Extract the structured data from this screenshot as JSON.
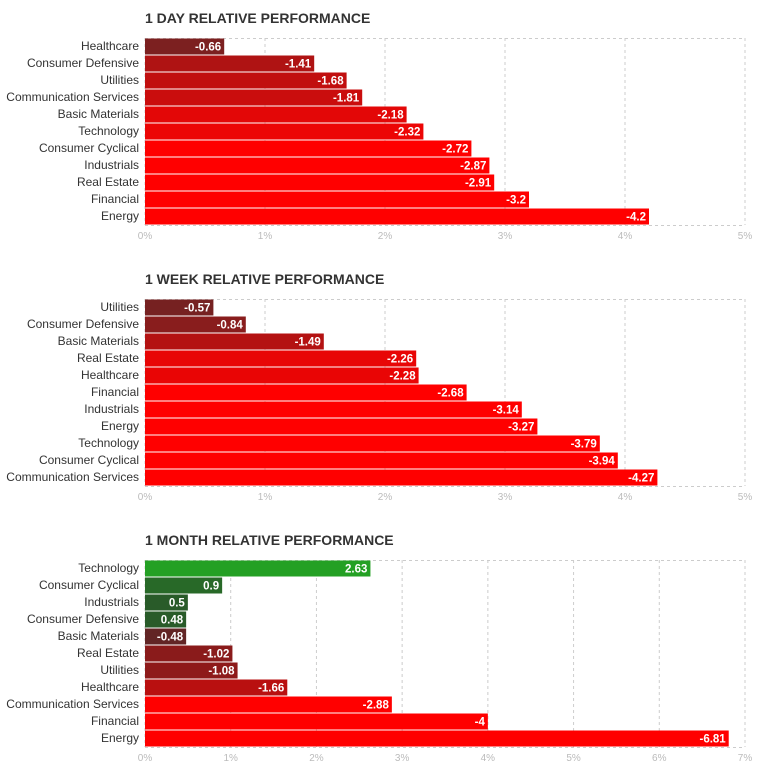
{
  "chart_data": [
    {
      "type": "bar",
      "orientation": "horizontal",
      "title": "1 DAY RELATIVE PERFORMANCE",
      "categories": [
        "Healthcare",
        "Consumer Defensive",
        "Utilities",
        "Communication Services",
        "Basic Materials",
        "Technology",
        "Consumer Cyclical",
        "Industrials",
        "Real Estate",
        "Financial",
        "Energy"
      ],
      "values": [
        -0.66,
        -1.41,
        -1.68,
        -1.81,
        -2.18,
        -2.32,
        -2.72,
        -2.87,
        -2.91,
        -3.2,
        -4.2
      ],
      "value_labels": [
        "-0.66",
        "-1.41",
        "-1.68",
        "-1.81",
        "-2.18",
        "-2.32",
        "-2.72",
        "-2.87",
        "-2.91",
        "-3.2",
        "-4.2"
      ],
      "xlim": [
        0,
        5
      ],
      "xticks": [
        "0%",
        "1%",
        "2%",
        "3%",
        "4%",
        "5%"
      ],
      "grid": true,
      "colors": {
        "positive": "#2a9b2a",
        "negative_low": "#6b2424",
        "negative_high": "#ff0000"
      }
    },
    {
      "type": "bar",
      "orientation": "horizontal",
      "title": "1 WEEK RELATIVE PERFORMANCE",
      "categories": [
        "Utilities",
        "Consumer Defensive",
        "Basic Materials",
        "Real Estate",
        "Healthcare",
        "Financial",
        "Industrials",
        "Energy",
        "Technology",
        "Consumer Cyclical",
        "Communication Services"
      ],
      "values": [
        -0.57,
        -0.84,
        -1.49,
        -2.26,
        -2.28,
        -2.68,
        -3.14,
        -3.27,
        -3.79,
        -3.94,
        -4.27
      ],
      "value_labels": [
        "-0.57",
        "-0.84",
        "-1.49",
        "-2.26",
        "-2.28",
        "-2.68",
        "-3.14",
        "-3.27",
        "-3.79",
        "-3.94",
        "-4.27"
      ],
      "xlim": [
        0,
        5
      ],
      "xticks": [
        "0%",
        "1%",
        "2%",
        "3%",
        "4%",
        "5%"
      ],
      "grid": true,
      "colors": {
        "positive": "#2a9b2a",
        "negative_low": "#6b2424",
        "negative_high": "#ff0000"
      }
    },
    {
      "type": "bar",
      "orientation": "horizontal",
      "title": "1 MONTH RELATIVE PERFORMANCE",
      "categories": [
        "Technology",
        "Consumer Cyclical",
        "Industrials",
        "Consumer Defensive",
        "Basic Materials",
        "Real Estate",
        "Utilities",
        "Healthcare",
        "Communication Services",
        "Financial",
        "Energy"
      ],
      "values": [
        2.63,
        0.9,
        0.5,
        0.48,
        -0.48,
        -1.02,
        -1.08,
        -1.66,
        -2.88,
        -4,
        -6.81
      ],
      "value_labels": [
        "2.63",
        "0.9",
        "0.5",
        "0.48",
        "-0.48",
        "-1.02",
        "-1.08",
        "-1.66",
        "-2.88",
        "-4",
        "-6.81"
      ],
      "xlim": [
        0,
        7
      ],
      "xticks": [
        "0%",
        "1%",
        "2%",
        "3%",
        "4%",
        "5%",
        "6%",
        "7%"
      ],
      "grid": true,
      "colors": {
        "positive_high": "#24a024",
        "positive_low": "#2a4a2a",
        "negative_low": "#5c2626",
        "negative_high": "#ff0000"
      }
    }
  ]
}
